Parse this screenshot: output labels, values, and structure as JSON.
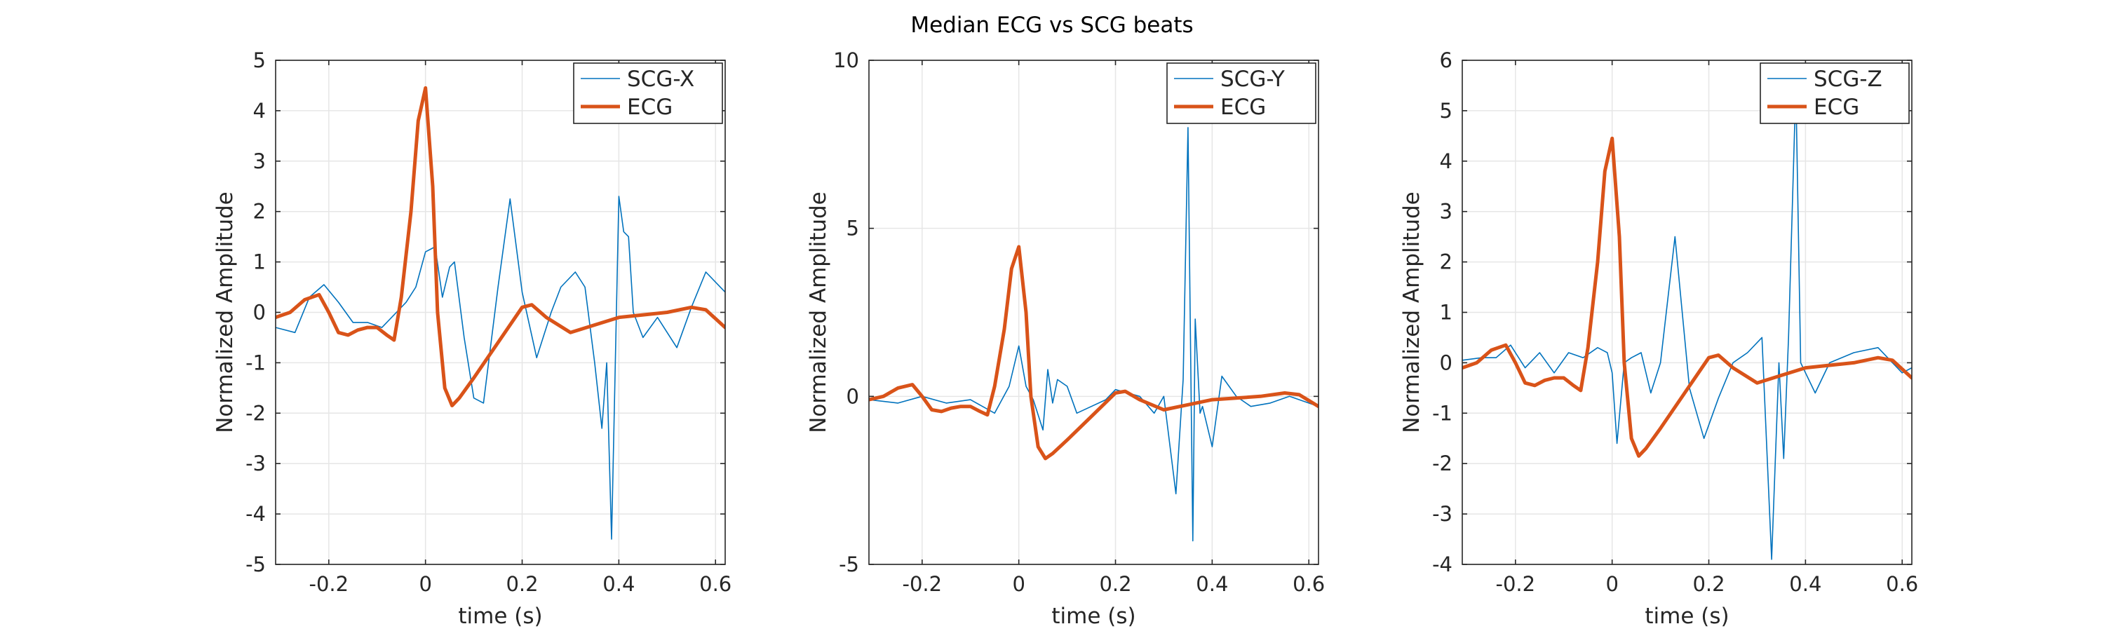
{
  "figure": {
    "title": "Median ECG vs SCG beats"
  },
  "colors": {
    "scg": "#0072BD",
    "ecg": "#D95319",
    "grid": "#e6e6e6",
    "axis": "#262626"
  },
  "chart_data": [
    {
      "type": "line",
      "title": "",
      "xlabel": "time (s)",
      "ylabel": "Normalized Amplitude",
      "xlim": [
        -0.31,
        0.62
      ],
      "ylim": [
        -5,
        5
      ],
      "xticks": [
        -0.2,
        0,
        0.2,
        0.4,
        0.6
      ],
      "xtick_labels": [
        "-0.2",
        "0",
        "0.2",
        "0.4",
        "0.6"
      ],
      "yticks": [
        -5,
        -4,
        -3,
        -2,
        -1,
        0,
        1,
        2,
        3,
        4,
        5
      ],
      "ytick_labels": [
        "-5",
        "-4",
        "-3",
        "-2",
        "-1",
        "0",
        "1",
        "2",
        "3",
        "4",
        "5"
      ],
      "grid": true,
      "legend_location": "top-right",
      "series": [
        {
          "name": "SCG-X",
          "x": [
            -0.31,
            -0.27,
            -0.24,
            -0.21,
            -0.18,
            -0.15,
            -0.12,
            -0.09,
            -0.06,
            -0.04,
            -0.02,
            0.0,
            0.02,
            0.035,
            0.05,
            0.06,
            0.08,
            0.1,
            0.12,
            0.15,
            0.175,
            0.2,
            0.23,
            0.26,
            0.28,
            0.31,
            0.33,
            0.35,
            0.365,
            0.375,
            0.385,
            0.4,
            0.41,
            0.42,
            0.43,
            0.45,
            0.48,
            0.52,
            0.55,
            0.58,
            0.62
          ],
          "y": [
            -0.3,
            -0.4,
            0.3,
            0.55,
            0.2,
            -0.2,
            -0.2,
            -0.3,
            0.0,
            0.2,
            0.5,
            1.2,
            1.3,
            0.3,
            0.9,
            1.0,
            -0.5,
            -1.7,
            -1.8,
            0.5,
            2.25,
            0.4,
            -0.9,
            0.0,
            0.5,
            0.8,
            0.5,
            -1.0,
            -2.3,
            -1.0,
            -4.5,
            2.3,
            1.6,
            1.5,
            0.0,
            -0.5,
            -0.1,
            -0.7,
            0.1,
            0.8,
            0.4
          ]
        },
        {
          "name": "ECG",
          "x": [
            -0.31,
            -0.28,
            -0.25,
            -0.22,
            -0.2,
            -0.18,
            -0.16,
            -0.14,
            -0.12,
            -0.1,
            -0.08,
            -0.065,
            -0.05,
            -0.03,
            -0.015,
            0.0,
            0.015,
            0.025,
            0.04,
            0.055,
            0.07,
            0.1,
            0.15,
            0.2,
            0.22,
            0.25,
            0.3,
            0.35,
            0.4,
            0.45,
            0.5,
            0.55,
            0.58,
            0.62
          ],
          "y": [
            -0.1,
            0.0,
            0.25,
            0.35,
            0.0,
            -0.4,
            -0.45,
            -0.35,
            -0.3,
            -0.3,
            -0.45,
            -0.55,
            0.3,
            2.0,
            3.8,
            4.45,
            2.5,
            0.0,
            -1.5,
            -1.85,
            -1.7,
            -1.3,
            -0.6,
            0.1,
            0.15,
            -0.1,
            -0.4,
            -0.25,
            -0.1,
            -0.05,
            0.0,
            0.1,
            0.05,
            -0.3
          ]
        }
      ]
    },
    {
      "type": "line",
      "title": "",
      "xlabel": "time (s)",
      "ylabel": "Normalized Amplitude",
      "xlim": [
        -0.31,
        0.62
      ],
      "ylim": [
        -5,
        10
      ],
      "xticks": [
        -0.2,
        0,
        0.2,
        0.4,
        0.6
      ],
      "xtick_labels": [
        "-0.2",
        "0",
        "0.2",
        "0.4",
        "0.6"
      ],
      "yticks": [
        -5,
        0,
        5,
        10
      ],
      "ytick_labels": [
        "-5",
        "0",
        "5",
        "10"
      ],
      "grid": true,
      "legend_location": "top-right",
      "series": [
        {
          "name": "SCG-Y",
          "x": [
            -0.31,
            -0.25,
            -0.2,
            -0.15,
            -0.1,
            -0.05,
            -0.02,
            0.0,
            0.015,
            0.03,
            0.05,
            0.06,
            0.07,
            0.08,
            0.1,
            0.12,
            0.15,
            0.18,
            0.2,
            0.25,
            0.28,
            0.3,
            0.325,
            0.34,
            0.35,
            0.36,
            0.365,
            0.375,
            0.38,
            0.4,
            0.42,
            0.45,
            0.48,
            0.52,
            0.56,
            0.6,
            0.62
          ],
          "y": [
            -0.1,
            -0.2,
            0.0,
            -0.2,
            -0.1,
            -0.5,
            0.3,
            1.5,
            0.3,
            -0.1,
            -1.0,
            0.8,
            -0.2,
            0.5,
            0.3,
            -0.5,
            -0.3,
            -0.1,
            0.2,
            0.0,
            -0.5,
            0.0,
            -2.9,
            0.5,
            8.0,
            -4.3,
            2.3,
            -0.5,
            -0.3,
            -1.5,
            0.6,
            0.0,
            -0.3,
            -0.2,
            0.0,
            -0.2,
            -0.3
          ]
        },
        {
          "name": "ECG",
          "x": [
            -0.31,
            -0.28,
            -0.25,
            -0.22,
            -0.2,
            -0.18,
            -0.16,
            -0.14,
            -0.12,
            -0.1,
            -0.08,
            -0.065,
            -0.05,
            -0.03,
            -0.015,
            0.0,
            0.015,
            0.025,
            0.04,
            0.055,
            0.07,
            0.1,
            0.15,
            0.2,
            0.22,
            0.25,
            0.3,
            0.35,
            0.4,
            0.45,
            0.5,
            0.55,
            0.58,
            0.62
          ],
          "y": [
            -0.1,
            0.0,
            0.25,
            0.35,
            0.0,
            -0.4,
            -0.45,
            -0.35,
            -0.3,
            -0.3,
            -0.45,
            -0.55,
            0.3,
            2.0,
            3.8,
            4.45,
            2.5,
            0.0,
            -1.5,
            -1.85,
            -1.7,
            -1.3,
            -0.6,
            0.1,
            0.15,
            -0.1,
            -0.4,
            -0.25,
            -0.1,
            -0.05,
            0.0,
            0.1,
            0.05,
            -0.3
          ]
        }
      ]
    },
    {
      "type": "line",
      "title": "",
      "xlabel": "time (s)",
      "ylabel": "Normalized Amplitude",
      "xlim": [
        -0.31,
        0.62
      ],
      "ylim": [
        -4,
        6
      ],
      "xticks": [
        -0.2,
        0,
        0.2,
        0.4,
        0.6
      ],
      "xtick_labels": [
        "-0.2",
        "0",
        "0.2",
        "0.4",
        "0.6"
      ],
      "yticks": [
        -4,
        -3,
        -2,
        -1,
        0,
        1,
        2,
        3,
        4,
        5,
        6
      ],
      "ytick_labels": [
        "-4",
        "-3",
        "-2",
        "-1",
        "0",
        "1",
        "2",
        "3",
        "4",
        "5",
        "6"
      ],
      "grid": true,
      "legend_location": "top-right",
      "series": [
        {
          "name": "SCG-Z",
          "x": [
            -0.31,
            -0.27,
            -0.24,
            -0.21,
            -0.18,
            -0.15,
            -0.12,
            -0.09,
            -0.06,
            -0.03,
            -0.01,
            0.0,
            0.01,
            0.025,
            0.04,
            0.06,
            0.08,
            0.1,
            0.13,
            0.16,
            0.19,
            0.22,
            0.25,
            0.28,
            0.31,
            0.33,
            0.345,
            0.355,
            0.365,
            0.38,
            0.39,
            0.4,
            0.42,
            0.45,
            0.5,
            0.55,
            0.6,
            0.62
          ],
          "y": [
            0.05,
            0.1,
            0.1,
            0.35,
            -0.1,
            0.2,
            -0.2,
            0.2,
            0.1,
            0.3,
            0.2,
            -0.2,
            -1.6,
            0.0,
            0.1,
            0.2,
            -0.6,
            0.0,
            2.5,
            -0.5,
            -1.5,
            -0.7,
            0.0,
            0.2,
            0.5,
            -3.9,
            0.0,
            -1.9,
            0.5,
            5.5,
            0.0,
            -0.2,
            -0.6,
            0.0,
            0.2,
            0.3,
            -0.2,
            -0.1
          ]
        },
        {
          "name": "ECG",
          "x": [
            -0.31,
            -0.28,
            -0.25,
            -0.22,
            -0.2,
            -0.18,
            -0.16,
            -0.14,
            -0.12,
            -0.1,
            -0.08,
            -0.065,
            -0.05,
            -0.03,
            -0.015,
            0.0,
            0.015,
            0.025,
            0.04,
            0.055,
            0.07,
            0.1,
            0.15,
            0.2,
            0.22,
            0.25,
            0.3,
            0.35,
            0.4,
            0.45,
            0.5,
            0.55,
            0.58,
            0.62
          ],
          "y": [
            -0.1,
            0.0,
            0.25,
            0.35,
            0.0,
            -0.4,
            -0.45,
            -0.35,
            -0.3,
            -0.3,
            -0.45,
            -0.55,
            0.3,
            2.0,
            3.8,
            4.45,
            2.5,
            0.0,
            -1.5,
            -1.85,
            -1.7,
            -1.3,
            -0.6,
            0.1,
            0.15,
            -0.1,
            -0.4,
            -0.25,
            -0.1,
            -0.05,
            0.0,
            0.1,
            0.05,
            -0.3
          ]
        }
      ]
    }
  ]
}
